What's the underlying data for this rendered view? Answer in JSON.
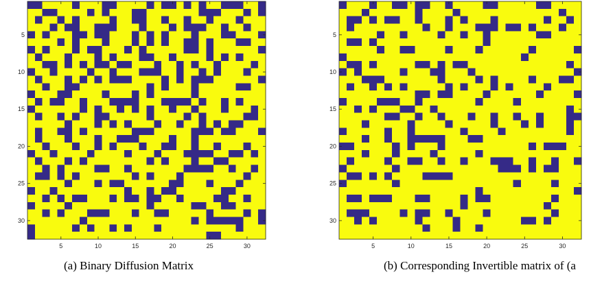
{
  "colors": {
    "one": "#352a87",
    "zero": "#f9fb0e",
    "axis": "#262626"
  },
  "chart_data": [
    {
      "type": "heatmap",
      "caption": "(a) Binary Diffusion Matrix",
      "rows": 32,
      "cols": 32,
      "xticks": [
        5,
        10,
        15,
        20,
        25,
        30
      ],
      "yticks": [
        5,
        10,
        15,
        20,
        25,
        30
      ],
      "values": [
        "11000010001100001011010100111001",
        "00110000101000110000000111000101",
        "01001010000100110010010010001000",
        "00010110011100010001011100100100",
        "10100011011000101010001000110001",
        "00001010001000101010011010001100",
        "10100010110001010000011010000001",
        "01000100010100011001000010101000",
        "00110101011011000100101001000010",
        "10010000100100011100100101000100",
        "01000101010111000010101110000001",
        "00100110000000001010001000001100",
        "10001100001000101000001000000000",
        "01011001000111100011110100101000",
        "10000001010010101001001000100010",
        "01001010011000001000010100000110",
        "00000100010101000100100101011000",
        "01001101000000111000001110110001",
        "01000100010011100001001000000000",
        "00100010010100010011001001000100",
        "10010000100001000100011110011010",
        "01000101000000001010001001100000",
        "00101000011001000000011110010010",
        "01101010000000101000100000000100",
        "00000100010110000001100010001000",
        "10010000000001001011000000110000",
        "00101011000101101100100001100100",
        "10000100000000001000001100110000",
        "00101000111000100110000010000101",
        "00000001000000000000001011111001",
        "10000010100101000100000000001000",
        "10000000000000000000000011000000"
      ]
    },
    {
      "type": "heatmap",
      "caption": "(b) Corresponding Invertible matrix of (a",
      "rows": 32,
      "cols": 32,
      "xticks": [
        5,
        10,
        15,
        20,
        25,
        30
      ],
      "yticks": [
        5,
        10,
        15,
        20,
        25,
        30
      ],
      "values": [
        "10001001101100100001100000110000",
        "00010000001000010000000000000100",
        "01101011001000101000100000010010",
        "01000000000100100011101101000100",
        "00000100100001001001000000110000",
        "01101000000000000001000000000000",
        "00000100110000100010000001000001",
        "10000000000000000000000010000000",
        "01101000001101011000000000000010",
        "10100000100011000100000000000001",
        "00011100000001000010100001000110",
        "01001010100000101000101000010000",
        "00000000001101100001000000100001",
        "10000111001000000010000100000000",
        "00101000110010000000000000000010",
        "00000011001001000100100100100011",
        "00010000010000100000100010100010",
        "10000010010000001000010000000010",
        "00010010011111000110000000000000",
        "11000001010001000000000001011100",
        "00010001000010000010000000000000",
        "01000010011001001000111001001001",
        "10000001000000000000011101011000",
        "01101010000111100000000000000000",
        "10000001000000000000000100001000",
        "00000000000000000010000000000001",
        "01101110001100001011000000001000",
        "00000000000000001000000000010000",
        "01110000101100100001000000001000",
        "00101000001000010000000011010000",
        "00000000000100010010000000000000",
        "00000000000000000000000000000000"
      ]
    }
  ]
}
